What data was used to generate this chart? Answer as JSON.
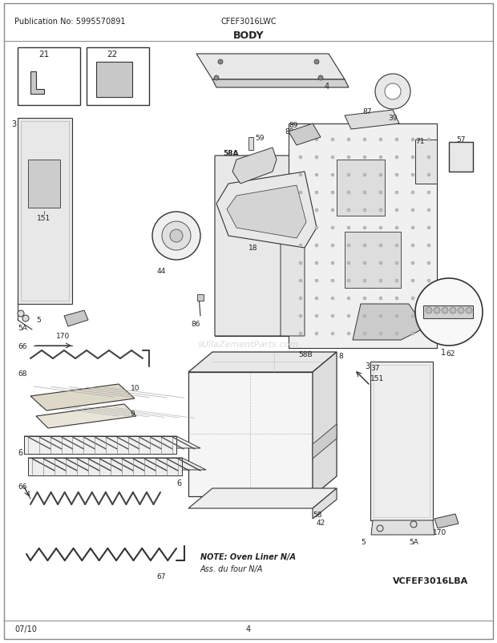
{
  "title": "BODY",
  "pub_no": "Publication No: 5995570891",
  "model": "CFEF3016LWC",
  "date": "07/10",
  "page": "4",
  "bottom_right": "VCFEF3016LBA",
  "note_line1": "NOTE: Oven Liner N/A",
  "note_line2": "Ass. du four N/A",
  "bg_color": "#ffffff",
  "text_color": "#222222",
  "line_color": "#333333",
  "light_gray": "#d8d8d8",
  "med_gray": "#aaaaaa",
  "watermark": "sUllaZementParts.com"
}
